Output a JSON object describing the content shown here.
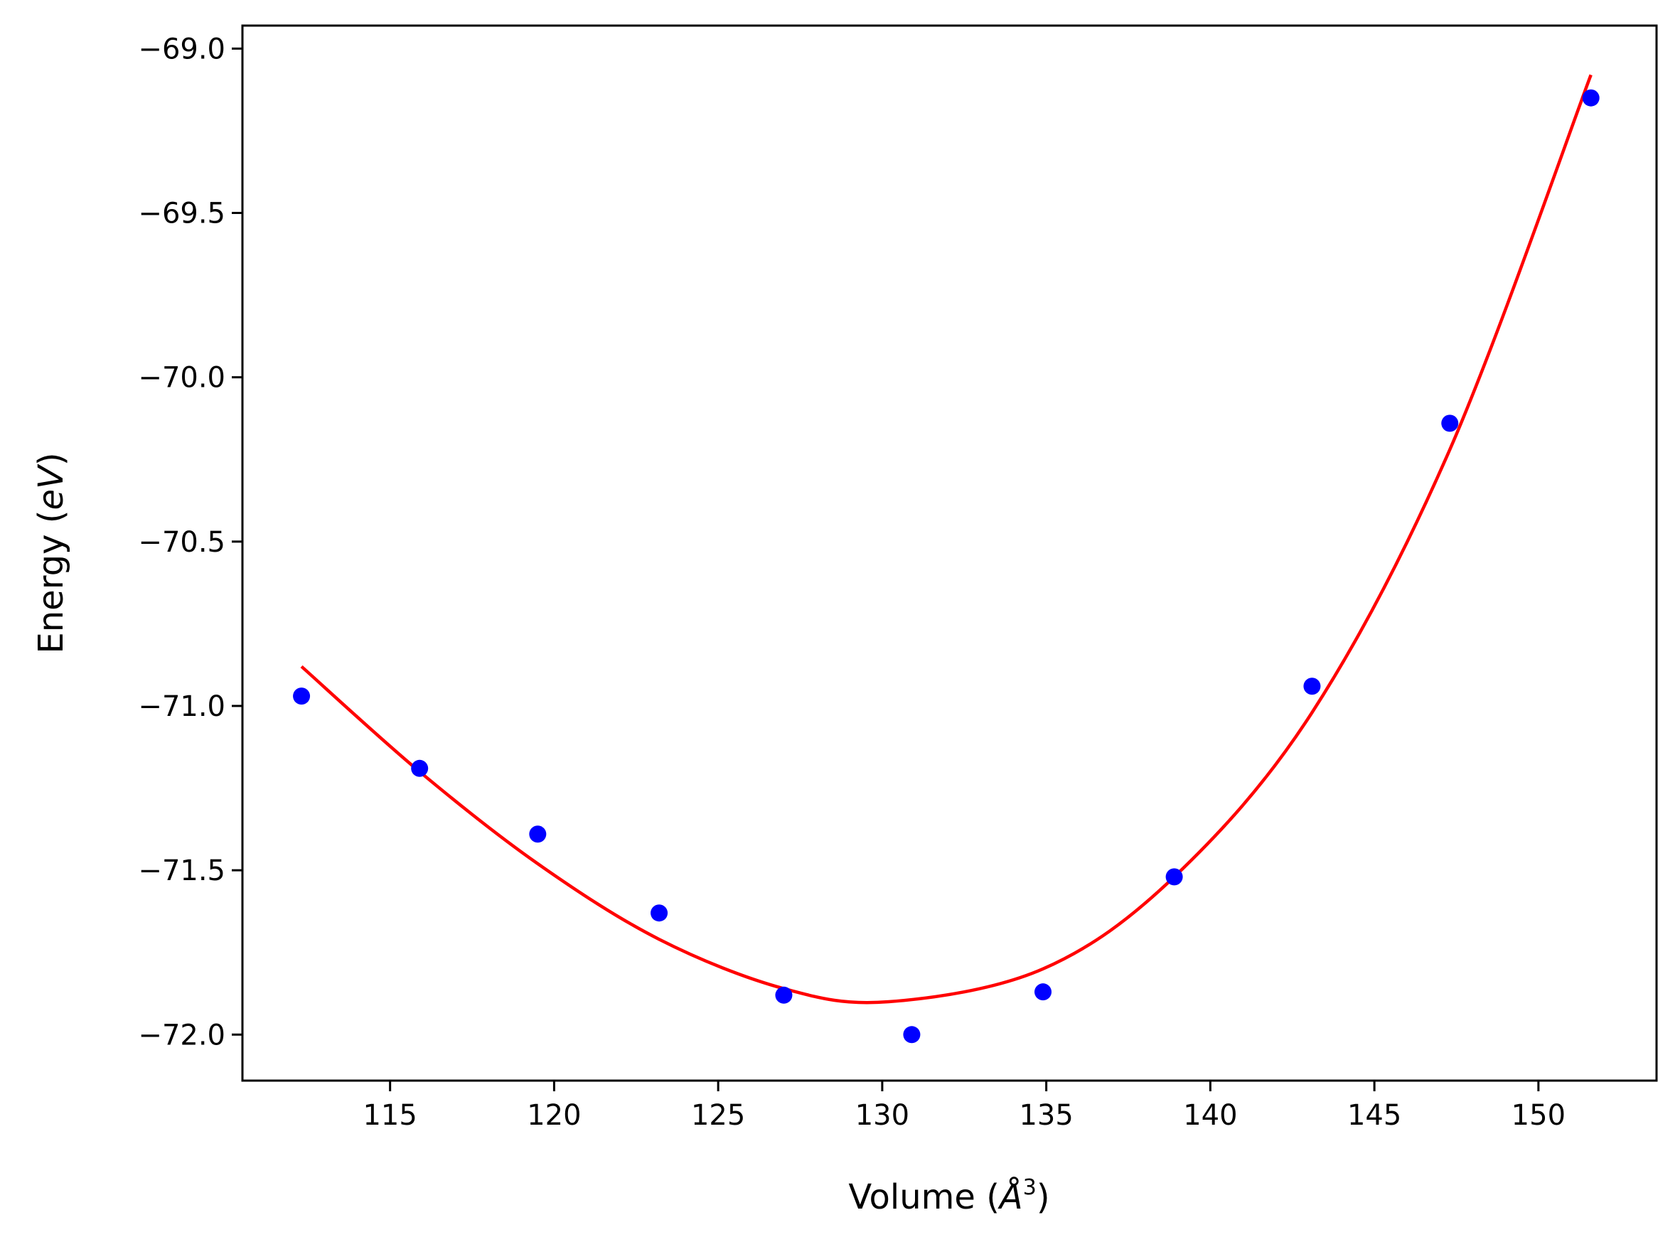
{
  "chart_data": {
    "type": "scatter",
    "title": "",
    "xlabel": "Volume (Å³)",
    "xlabel_parts": {
      "prefix": "Volume (",
      "symbol": "Å",
      "superscript": "3",
      "suffix": ")"
    },
    "ylabel": "Energy (eV)",
    "ylabel_parts": {
      "prefix": "Energy (",
      "italic": "eV",
      "suffix": ")"
    },
    "xlim": [
      110.5,
      153.6
    ],
    "ylim": [
      -72.14,
      -68.93
    ],
    "x_ticks": [
      115,
      120,
      125,
      130,
      135,
      140,
      145,
      150
    ],
    "y_ticks": [
      -69.0,
      -69.5,
      -70.0,
      -70.5,
      -71.0,
      -71.5,
      -72.0
    ],
    "x_tick_labels": [
      "115",
      "120",
      "125",
      "130",
      "135",
      "140",
      "145",
      "150"
    ],
    "y_tick_labels": [
      "−69.0",
      "−69.5",
      "−70.0",
      "−70.5",
      "−71.0",
      "−71.5",
      "−72.0"
    ],
    "grid": false,
    "series": [
      {
        "type": "scatter",
        "color": "#0000ff",
        "x": [
          112.3,
          115.9,
          119.5,
          123.2,
          127.0,
          130.9,
          134.9,
          138.9,
          143.1,
          147.3,
          151.6
        ],
        "y": [
          -70.97,
          -71.19,
          -71.39,
          -71.63,
          -71.88,
          -72.0,
          -71.87,
          -71.52,
          -70.94,
          -70.14,
          -69.15
        ]
      },
      {
        "type": "line",
        "color": "#ff0000",
        "x": [
          112.3,
          115.9,
          119.5,
          123.2,
          127.0,
          130.2,
          134.9,
          138.9,
          143.1,
          147.3,
          151.6
        ],
        "y": [
          -70.88,
          -71.2,
          -71.48,
          -71.71,
          -71.86,
          -71.9,
          -71.8,
          -71.52,
          -71.02,
          -70.22,
          -69.08
        ]
      }
    ]
  }
}
